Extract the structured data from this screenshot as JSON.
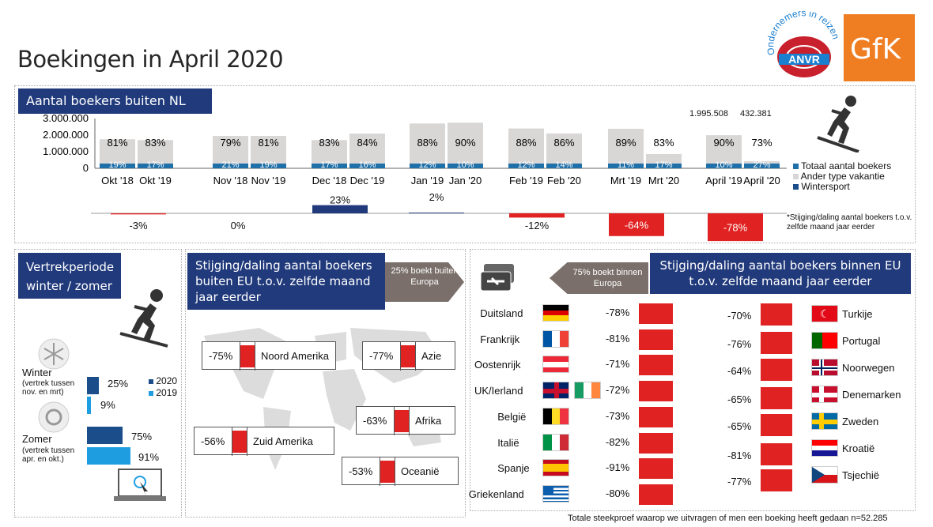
{
  "title": "Boekingen in April 2020",
  "logos": {
    "anvr_ring": "Ondernemers in reizen",
    "anvr": "ANVR",
    "gfk": "GfK"
  },
  "colors": {
    "navy": "#213a7b",
    "red": "#e02222",
    "gray": "#d9d7d6",
    "blue_bar": "#1f6fa8",
    "dark_blue": "#1a4d8a",
    "light_blue": "#1e9ee0"
  },
  "boekers": {
    "header": "Aantal boekers buiten NL",
    "extra_values": [
      "1.995.508",
      "432.381"
    ],
    "legend_note": "*Stijging/daling aantal boekers t.o.v. zelfde maand jaar eerder",
    "changes": [
      "-3%",
      "0%",
      "23%",
      "2%",
      "-12%",
      "-64%",
      "-78%"
    ]
  },
  "chart_data": {
    "type": "bar",
    "yticks": [
      "3.000.000",
      "2.000.000",
      "1.000.000",
      "0"
    ],
    "ylim": [
      0,
      3000000
    ],
    "categories": [
      "Okt '18",
      "Okt '19",
      "Nov '18",
      "Nov '19",
      "Dec '18",
      "Dec '19",
      "Jan '19",
      "Jan '20",
      "Feb '19",
      "Feb '20",
      "Mrt '19",
      "Mrt '20",
      "April '19",
      "April '20"
    ],
    "series": [
      {
        "name": "Totaal aantal boekers",
        "values": [
          1750000,
          1700000,
          1950000,
          1950000,
          1700000,
          2090000,
          2700000,
          2750000,
          2400000,
          2100000,
          2380000,
          860000,
          1995508,
          432381
        ]
      },
      {
        "name": "Ander type vakantie",
        "labels": [
          "81%",
          "83%",
          "79%",
          "81%",
          "83%",
          "84%",
          "88%",
          "90%",
          "88%",
          "86%",
          "89%",
          "83%",
          "90%",
          "73%"
        ]
      },
      {
        "name": "Wintersport",
        "labels": [
          "19%",
          "17%",
          "21%",
          "19%",
          "17%",
          "16%",
          "12%",
          "10%",
          "12%",
          "14%",
          "11%",
          "17%",
          "10%",
          "27%"
        ]
      }
    ],
    "change_values": [
      -3,
      0,
      23,
      2,
      -12,
      -64,
      -78
    ]
  },
  "vertrek": {
    "header_line1": "Vertrekperiode",
    "header_line2": "winter / zomer",
    "winter_label": "Winter",
    "winter_sub1": "(vertrek tussen",
    "winter_sub2": "nov. en mrt)",
    "zomer_label": "Zomer",
    "zomer_sub1": "(vertrek tussen",
    "zomer_sub2": "apr. en okt.)",
    "legend_2020": "2020",
    "legend_2019": "2019",
    "winter_2020": "25%",
    "winter_2019": "9%",
    "zomer_2020": "75%",
    "zomer_2019": "91%",
    "values": {
      "winter_2020": 25,
      "winter_2019": 9,
      "zomer_2020": 75,
      "zomer_2019": 91
    }
  },
  "buiten_eu": {
    "header": "Stijging/daling aantal boekers buiten EU t.o.v. zelfde maand jaar eerder",
    "arrow": "25% boekt buiten Europa",
    "regions": [
      {
        "value": "-75%",
        "name": "Noord Amerika"
      },
      {
        "value": "-77%",
        "name": "Azie"
      },
      {
        "value": "-63%",
        "name": "Afrika"
      },
      {
        "value": "-56%",
        "name": "Zuid Amerika"
      },
      {
        "value": "-53%",
        "name": "Oceanië"
      }
    ]
  },
  "binnen_eu": {
    "header": "Stijging/daling aantal boekers binnen EU t.o.v. zelfde maand jaar eerder",
    "arrow": "75% boekt binnen Europa",
    "left": [
      {
        "name": "Duitsland",
        "value": "-78%"
      },
      {
        "name": "Frankrijk",
        "value": "-81%"
      },
      {
        "name": "Oostenrijk",
        "value": "-71%"
      },
      {
        "name": "UK/Ierland",
        "value": "-72%"
      },
      {
        "name": "België",
        "value": "-73%"
      },
      {
        "name": "Italië",
        "value": "-82%"
      },
      {
        "name": "Spanje",
        "value": "-91%"
      },
      {
        "name": "Griekenland",
        "value": "-80%"
      }
    ],
    "right": [
      {
        "name": "Turkije",
        "value": "-70%"
      },
      {
        "name": "Portugal",
        "value": "-76%"
      },
      {
        "name": "Noorwegen",
        "value": "-64%"
      },
      {
        "name": "Denemarken",
        "value": "-65%"
      },
      {
        "name": "Zweden",
        "value": "-65%"
      },
      {
        "name": "Kroatië",
        "value": "-81%"
      },
      {
        "name": "Tsjechië",
        "value": "-77%"
      }
    ]
  },
  "footer": "Totale steekproef waarop we uitvragen of men een boeking heeft gedaan n=52.285"
}
